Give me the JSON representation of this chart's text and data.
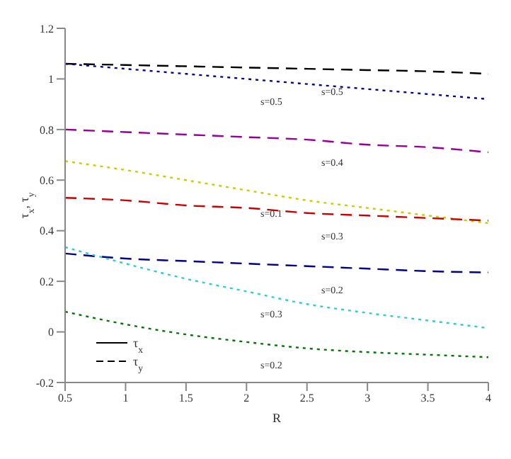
{
  "chart_data": {
    "type": "line",
    "xlabel": "R",
    "ylabel": "τ$_{x}$, τ$_{y}$",
    "x": [
      0.5,
      1,
      1.5,
      2,
      2.5,
      3,
      3.5,
      4
    ],
    "series": [
      {
        "color": "#000000",
        "line_style": "dashed",
        "values": [
          1.06,
          1.055,
          1.05,
          1.045,
          1.04,
          1.035,
          1.03,
          1.02
        ]
      },
      {
        "color": "#00008b",
        "line_style": "dotted",
        "values": [
          1.06,
          1.04,
          1.02,
          1.0,
          0.98,
          0.96,
          0.94,
          0.92
        ]
      },
      {
        "color": "#990099",
        "line_style": "dashed",
        "values": [
          0.8,
          0.79,
          0.78,
          0.77,
          0.76,
          0.74,
          0.73,
          0.71
        ]
      },
      {
        "color": "#cccc00",
        "line_style": "dotted",
        "values": [
          0.675,
          0.64,
          0.6,
          0.56,
          0.52,
          0.49,
          0.46,
          0.43
        ]
      },
      {
        "color": "#cc0000",
        "line_style": "dashed",
        "values": [
          0.53,
          0.52,
          0.5,
          0.49,
          0.47,
          0.46,
          0.45,
          0.44
        ]
      },
      {
        "color": "#00008b",
        "line_style": "dashed",
        "values": [
          0.31,
          0.29,
          0.28,
          0.27,
          0.26,
          0.25,
          0.24,
          0.235
        ]
      },
      {
        "color": "#33cccc",
        "line_style": "dotted",
        "values": [
          0.335,
          0.27,
          0.21,
          0.16,
          0.11,
          0.075,
          0.045,
          0.015
        ]
      },
      {
        "color": "#007700",
        "line_style": "dotted",
        "values": [
          0.08,
          0.03,
          -0.01,
          -0.04,
          -0.065,
          -0.08,
          -0.09,
          -0.1
        ]
      }
    ],
    "annotations": [
      "s=0.5",
      "s=0.5",
      "s=0.4",
      "s=0.1",
      "s=0.3",
      "s=0.2",
      "s=0.3",
      "s=0.2",
      "τ$_{x}$",
      "τ$_{y}$"
    ],
    "xlim": [
      0.5,
      4
    ],
    "xticks": [
      0.5,
      1,
      1.5,
      2,
      2.5,
      3,
      3.5,
      4
    ],
    "ylim": [
      -0.2,
      1.2
    ],
    "yticks": [
      -0.2,
      0,
      0.2,
      0.4,
      0.6,
      0.8,
      1,
      1.2
    ],
    "grid": false
  }
}
